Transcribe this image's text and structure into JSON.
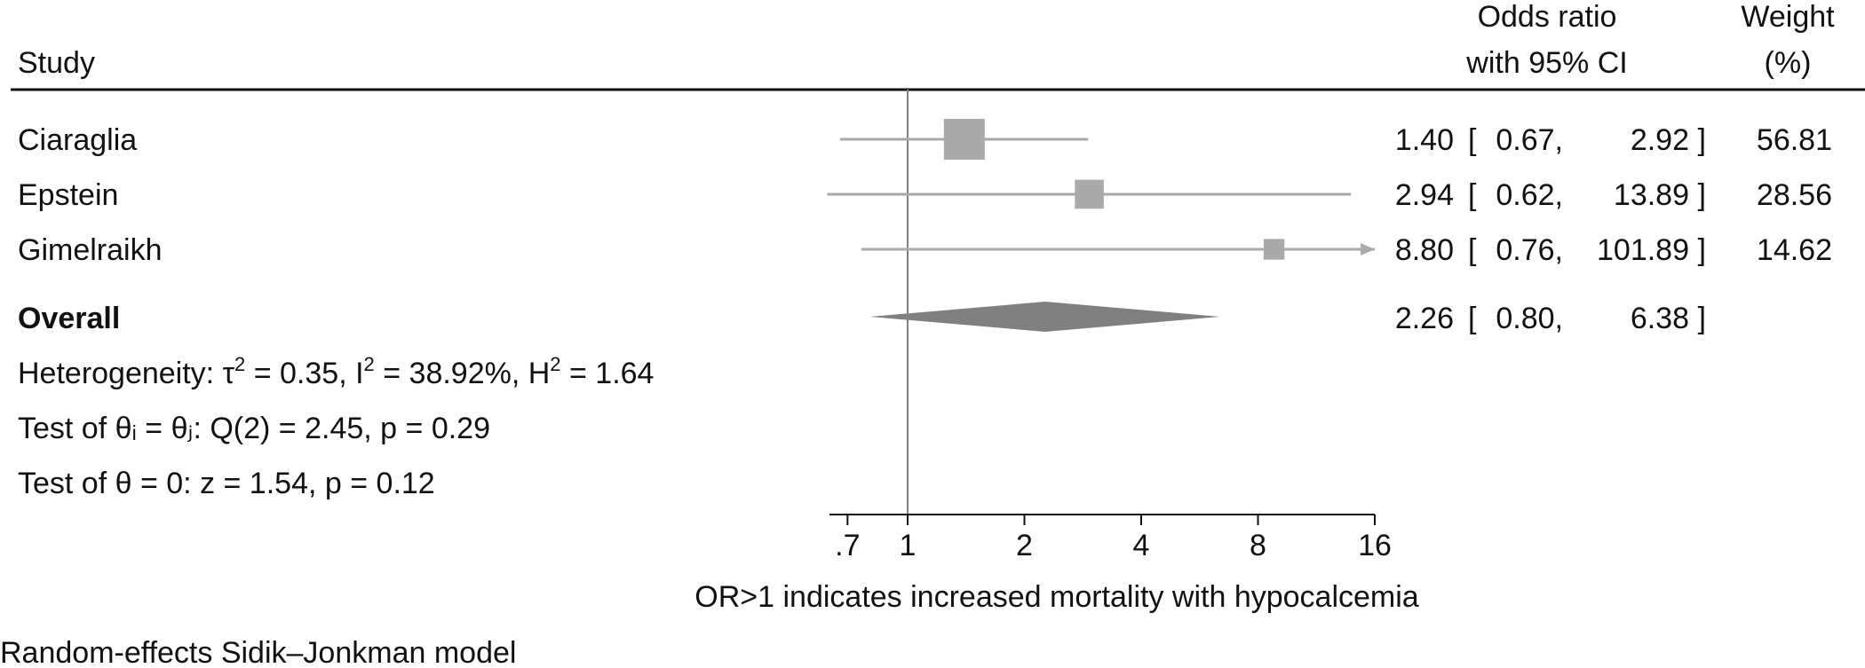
{
  "header": {
    "study": "Study",
    "or_line1": "Odds ratio",
    "or_line2": "with 95% CI",
    "weight_line1": "Weight",
    "weight_line2": "(%)"
  },
  "colors": {
    "box": "#aaaaaa",
    "ci_line": "#aaaaaa",
    "diamond": "#808080",
    "axis": "#111111",
    "ref_line": "#808080"
  },
  "chart_data": {
    "type": "forest",
    "xscale": "log",
    "xlim": [
      0.6,
      16
    ],
    "xticks": [
      0.7,
      1,
      2,
      4,
      8,
      16
    ],
    "xtick_labels": [
      ".7",
      "1",
      "2",
      "4",
      "8",
      "16"
    ],
    "xlabel": "OR>1 indicates increased mortality with hypocalcemia",
    "reference_line": 1,
    "studies": [
      {
        "name": "Ciaraglia",
        "or": 1.4,
        "lo": 0.67,
        "hi": 2.92,
        "or_text": "1.40",
        "lo_text": "0.67",
        "hi_text": "2.92",
        "weight": 56.81,
        "weight_text": "56.81"
      },
      {
        "name": "Epstein",
        "or": 2.94,
        "lo": 0.62,
        "hi": 13.89,
        "or_text": "2.94",
        "lo_text": "0.62",
        "hi_text": "13.89",
        "weight": 28.56,
        "weight_text": "28.56"
      },
      {
        "name": "Gimelraikh",
        "or": 8.8,
        "lo": 0.76,
        "hi": 101.89,
        "or_text": "8.80",
        "lo_text": "0.76",
        "hi_text": "101.89",
        "weight": 14.62,
        "weight_text": "14.62"
      }
    ],
    "overall": {
      "name": "Overall",
      "or": 2.26,
      "lo": 0.8,
      "hi": 6.38,
      "or_text": "2.26",
      "lo_text": "0.80",
      "hi_text": "6.38"
    },
    "heterogeneity": {
      "prefix": "Heterogeneity: τ",
      "tau_sup": "2",
      "tau_val": " = 0.35, I",
      "i_sup": "2",
      "i_val": " = 38.92%, H",
      "h_sup": "2",
      "h_val": " = 1.64"
    },
    "test_equal": "Test of θᵢ = θⱼ: Q(2) = 2.45, p = 0.29",
    "test_zero": "Test of θ = 0: z = 1.54, p = 0.12",
    "note": "Random-effects Sidik–Jonkman model"
  }
}
